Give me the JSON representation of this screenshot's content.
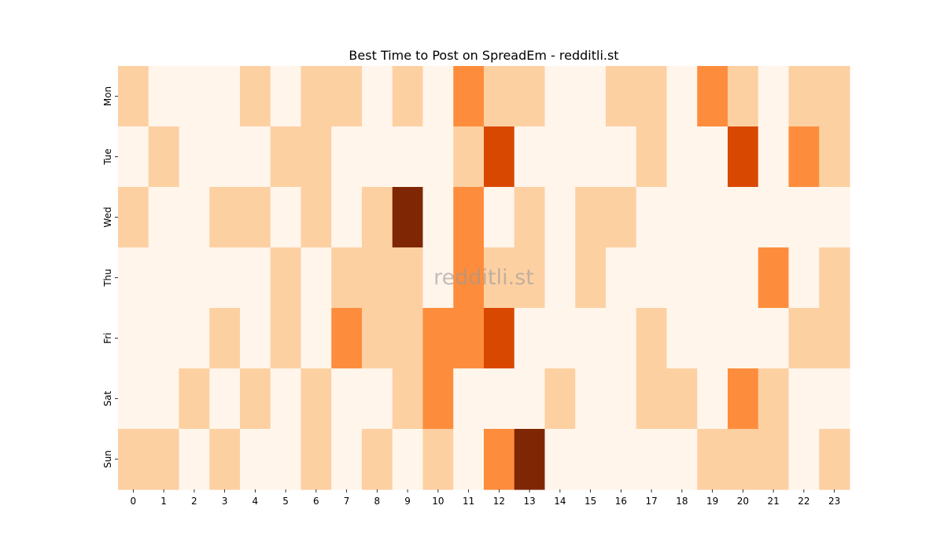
{
  "chart_data": {
    "type": "heatmap",
    "title": "Best Time to Post on SpreadEm - redditli.st",
    "xlabel": "",
    "ylabel": "",
    "x_categories": [
      "0",
      "1",
      "2",
      "3",
      "4",
      "5",
      "6",
      "7",
      "8",
      "9",
      "10",
      "11",
      "12",
      "13",
      "14",
      "15",
      "16",
      "17",
      "18",
      "19",
      "20",
      "21",
      "22",
      "23"
    ],
    "y_categories": [
      "Mon",
      "Tue",
      "Wed",
      "Thu",
      "Fri",
      "Sat",
      "Sun"
    ],
    "values": [
      [
        1,
        0,
        0,
        0,
        1,
        0,
        1,
        1,
        0,
        1,
        0,
        2,
        1,
        1,
        0,
        0,
        1,
        1,
        0,
        2,
        1,
        0,
        1,
        1
      ],
      [
        0,
        1,
        0,
        0,
        0,
        1,
        1,
        0,
        0,
        0,
        0,
        1,
        3,
        0,
        0,
        0,
        0,
        1,
        0,
        0,
        3,
        0,
        2,
        1
      ],
      [
        1,
        0,
        0,
        1,
        1,
        0,
        1,
        0,
        1,
        4,
        0,
        2,
        0,
        1,
        0,
        1,
        1,
        0,
        0,
        0,
        0,
        0,
        0,
        0
      ],
      [
        0,
        0,
        0,
        0,
        0,
        1,
        0,
        1,
        1,
        1,
        0,
        2,
        1,
        1,
        0,
        1,
        0,
        0,
        0,
        0,
        0,
        2,
        0,
        1
      ],
      [
        0,
        0,
        0,
        1,
        0,
        1,
        0,
        2,
        1,
        1,
        2,
        2,
        3,
        0,
        0,
        0,
        0,
        1,
        0,
        0,
        0,
        0,
        1,
        1
      ],
      [
        0,
        0,
        1,
        0,
        1,
        0,
        1,
        0,
        0,
        1,
        2,
        0,
        0,
        0,
        1,
        0,
        0,
        1,
        1,
        0,
        2,
        1,
        0,
        0
      ],
      [
        1,
        1,
        0,
        1,
        0,
        0,
        1,
        0,
        1,
        0,
        1,
        0,
        2,
        4,
        0,
        0,
        0,
        0,
        0,
        1,
        1,
        1,
        0,
        1
      ]
    ],
    "value_range": [
      0,
      4
    ],
    "colormap": [
      "#fff5eb",
      "#fdd0a2",
      "#fd8d3c",
      "#d94801",
      "#7f2704"
    ],
    "colorbar": false,
    "grid": false,
    "watermark": "redditli.st"
  }
}
